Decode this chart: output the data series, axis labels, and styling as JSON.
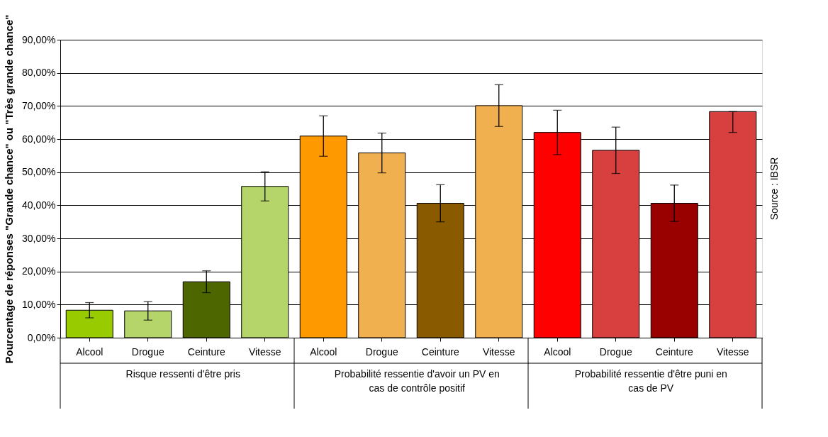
{
  "chart_data": {
    "type": "bar",
    "ylabel": "Pourcentage de réponses \"Grande chance\" ou \"Très grande chance\"",
    "categories": [
      "Alcool",
      "Drogue",
      "Ceinture",
      "Vitesse",
      "Alcool",
      "Drogue",
      "Ceinture",
      "Vitesse",
      "Alcool",
      "Drogue",
      "Ceinture",
      "Vitesse"
    ],
    "values": [
      8.3,
      8.1,
      16.9,
      45.7,
      60.9,
      55.8,
      40.6,
      70.1,
      62.0,
      56.6,
      40.6,
      68.3
    ],
    "errors": [
      2.3,
      2.8,
      3.3,
      4.4,
      6.1,
      6.0,
      5.6,
      6.3,
      6.7,
      7.0,
      5.5,
      [
        62.0,
        68.3
      ]
    ],
    "colors": [
      "#99cc00",
      "#b5d56a",
      "#4d6600",
      "#b5d56a",
      "#ff9900",
      "#f0b050",
      "#8a5a00",
      "#f0b050",
      "#ff0000",
      "#d84040",
      "#990000",
      "#d84040"
    ],
    "ylim": [
      0,
      90
    ],
    "yticks": [
      {
        "value": 0,
        "label": "0,00%"
      },
      {
        "value": 10,
        "label": "10,00%"
      },
      {
        "value": 20,
        "label": "20,00%"
      },
      {
        "value": 30,
        "label": "30,00%"
      },
      {
        "value": 40,
        "label": "40,00%"
      },
      {
        "value": 50,
        "label": "50,00%"
      },
      {
        "value": 60,
        "label": "60,00%"
      },
      {
        "value": 70,
        "label": "70,00%"
      },
      {
        "value": 80,
        "label": "80,00%"
      },
      {
        "value": 90,
        "label": "90,00%"
      }
    ],
    "grid": "y",
    "annotations": [
      "Risque ressenti d'être pris",
      "Probabilité ressentie d'avoir un PV en cas de contrôle positif",
      "Probabilité ressentie d'être puni en cas de PV",
      "Source : IBSR"
    ]
  }
}
